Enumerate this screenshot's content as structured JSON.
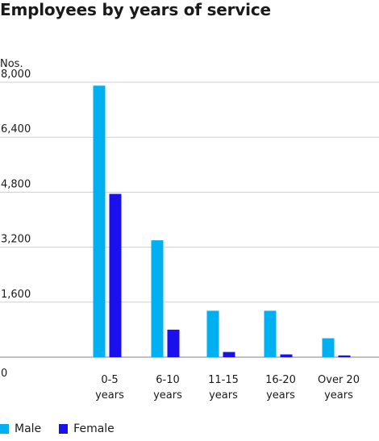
{
  "chart_data": {
    "type": "bar",
    "title": "Employees by years of service",
    "ylabel": "Nos.",
    "xlabel": "",
    "categories": [
      [
        "0-5",
        "years"
      ],
      [
        "6-10",
        "years"
      ],
      [
        "11-15",
        "years"
      ],
      [
        "16-20",
        "years"
      ],
      [
        "Over 20",
        "years"
      ]
    ],
    "series": [
      {
        "name": "Male",
        "color": "#00b0f0",
        "values": [
          7900,
          3400,
          1350,
          1350,
          550
        ]
      },
      {
        "name": "Female",
        "color": "#1a10ee",
        "values": [
          4750,
          800,
          150,
          80,
          50
        ]
      }
    ],
    "ylim": [
      0,
      8000
    ],
    "yticks": [
      "0",
      "1,600",
      "3,200",
      "4,800",
      "6,400",
      "8,000"
    ],
    "ytick_values": [
      0,
      1600,
      3200,
      4800,
      6400,
      8000
    ],
    "grid": true,
    "legend_position": "bottom-left"
  }
}
